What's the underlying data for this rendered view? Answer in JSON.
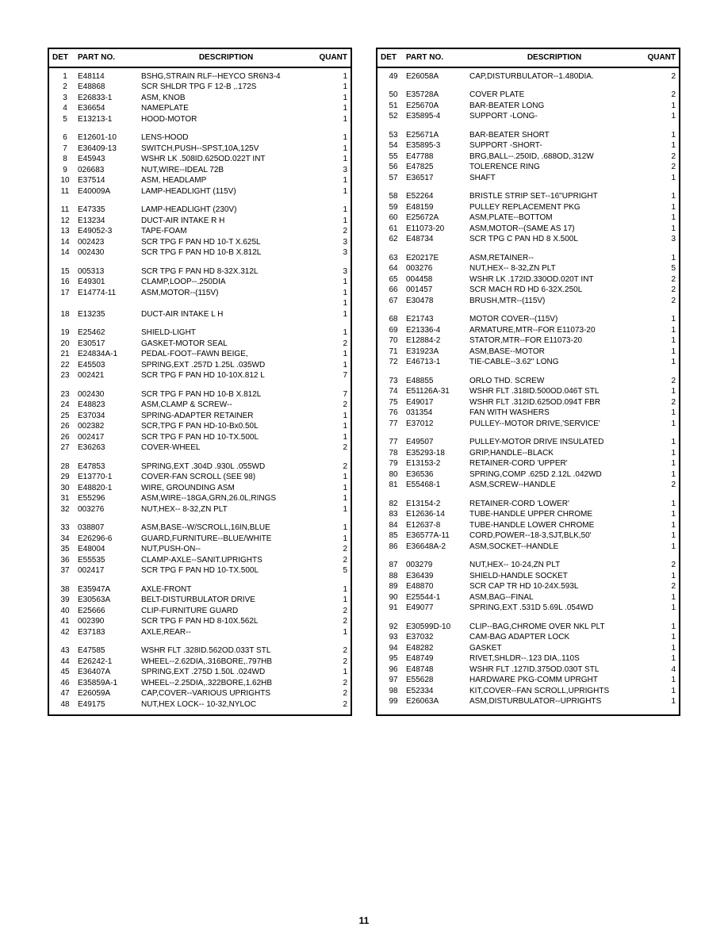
{
  "page_number": "11",
  "headers": {
    "det": "DET",
    "part": "PART NO.",
    "desc": "DESCRIPTION",
    "quant": "QUANT"
  },
  "left_rows": [
    {
      "det": "1",
      "part": "E48114",
      "desc": "BSHG,STRAIN RLF--HEYCO SR6N3-4",
      "quant": "1"
    },
    {
      "det": "2",
      "part": "E48868",
      "desc": "SCR SHLDR TPG  F   12-B ,.172S",
      "quant": "1"
    },
    {
      "det": "3",
      "part": "E26833-1",
      "desc": "ASM, KNOB",
      "quant": "1"
    },
    {
      "det": "4",
      "part": "E36654",
      "desc": "NAMEPLATE",
      "quant": "1"
    },
    {
      "det": "5",
      "part": "E13213-1",
      "desc": "HOOD-MOTOR",
      "quant": "1"
    },
    {
      "gap": true
    },
    {
      "det": "6",
      "part": "E12601-10",
      "desc": "LENS-HOOD",
      "quant": "1"
    },
    {
      "det": "7",
      "part": "E36409-13",
      "desc": "SWITCH,PUSH--SPST,10A,125V",
      "quant": "1"
    },
    {
      "det": "8",
      "part": "E45943",
      "desc": "WSHR LK  .508ID.625OD.022T INT",
      "quant": "1"
    },
    {
      "det": "9",
      "part": "026683",
      "desc": "NUT,WIRE--IDEAL 72B",
      "quant": "3"
    },
    {
      "det": "10",
      "part": "E37514",
      "desc": "ASM, HEADLAMP",
      "quant": "1"
    },
    {
      "det": "11",
      "part": "E40009A",
      "desc": "LAMP-HEADLIGHT (115V)",
      "quant": "1"
    },
    {
      "gap": true
    },
    {
      "det": "11",
      "part": "E47335",
      "desc": "LAMP-HEADLIGHT (230V)",
      "quant": "1"
    },
    {
      "det": "12",
      "part": "E13234",
      "desc": "DUCT-AIR INTAKE R H",
      "quant": "1"
    },
    {
      "det": "13",
      "part": "E49052-3",
      "desc": "TAPE-FOAM",
      "quant": "2"
    },
    {
      "det": "14",
      "part": "002423",
      "desc": "SCR TPG F PAN HD   10-T X.625L",
      "quant": "3"
    },
    {
      "det": "14",
      "part": "002430",
      "desc": "SCR TPG F PAN HD   10-B X.812L",
      "quant": "3"
    },
    {
      "gap": true
    },
    {
      "det": "15",
      "part": "005313",
      "desc": "SCR TPG F PAN HD    8-32X.312L",
      "quant": "3"
    },
    {
      "det": "16",
      "part": "E49301",
      "desc": "CLAMP,LOOP--.250DIA",
      "quant": "1"
    },
    {
      "det": "17",
      "part": "E14774-11",
      "desc": "ASM,MOTOR--(115V)",
      "quant": "1"
    },
    {
      "det": "",
      "part": "",
      "desc": "",
      "quant": "1"
    },
    {
      "det": "18",
      "part": "E13235",
      "desc": "DUCT-AIR INTAKE L H",
      "quant": "1"
    },
    {
      "gap": true
    },
    {
      "det": "19",
      "part": "E25462",
      "desc": "SHIELD-LIGHT",
      "quant": "1"
    },
    {
      "det": "20",
      "part": "E30517",
      "desc": "GASKET-MOTOR SEAL",
      "quant": "2"
    },
    {
      "det": "21",
      "part": "E24834A-1",
      "desc": "PEDAL-FOOT--FAWN BEIGE,",
      "quant": "1"
    },
    {
      "det": "22",
      "part": "E45503",
      "desc": "SPRING,EXT  .257D 1.25L .035WD",
      "quant": "1"
    },
    {
      "det": "23",
      "part": "002421",
      "desc": "SCR TPG F PAN HD 10-10X.812 L",
      "quant": "7"
    },
    {
      "gap": true
    },
    {
      "det": "23",
      "part": "002430",
      "desc": "SCR TPG F PAN HD   10-B X.812L",
      "quant": "7"
    },
    {
      "det": "24",
      "part": "E48823",
      "desc": "ASM,CLAMP & SCREW--",
      "quant": "2"
    },
    {
      "det": "25",
      "part": "E37034",
      "desc": "SPRING-ADAPTER RETAINER",
      "quant": "1"
    },
    {
      "det": "26",
      "part": "002382",
      "desc": "SCR,TPG F PAN HD-10-Bx0.50L",
      "quant": "1"
    },
    {
      "det": "26",
      "part": "002417",
      "desc": "SCR TPG F PAN HD  10-TX.500L",
      "quant": "1"
    },
    {
      "det": "27",
      "part": "E36263",
      "desc": "COVER-WHEEL",
      "quant": "2"
    },
    {
      "gap": true
    },
    {
      "det": "28",
      "part": "E47853",
      "desc": "SPRING,EXT  .304D .930L .055WD",
      "quant": "2"
    },
    {
      "det": "29",
      "part": "E13770-1",
      "desc": "COVER-FAN SCROLL (SEE 98)",
      "quant": "1"
    },
    {
      "det": "30",
      "part": "E48820-1",
      "desc": "WIRE, GROUNDING ASM",
      "quant": "1"
    },
    {
      "det": "31",
      "part": "E55296",
      "desc": "ASM,WIRE--18GA,GRN,26.0L,RINGS",
      "quant": "1"
    },
    {
      "det": "32",
      "part": "003276",
      "desc": "NUT,HEX--   8-32,ZN PLT",
      "quant": "1"
    },
    {
      "gap": true
    },
    {
      "det": "33",
      "part": "038807",
      "desc": "ASM,BASE--W/SCROLL,16IN,BLUE",
      "quant": "1"
    },
    {
      "det": "34",
      "part": "E26296-6",
      "desc": "GUARD,FURNITURE--BLUE/WHITE",
      "quant": "1"
    },
    {
      "det": "35",
      "part": "E48004",
      "desc": "NUT,PUSH-ON--",
      "quant": "2"
    },
    {
      "det": "36",
      "part": "E55535",
      "desc": "CLAMP-AXLE--SANIT.UPRIGHTS",
      "quant": "2"
    },
    {
      "det": "37",
      "part": "002417",
      "desc": "SCR TPG F PAN HD  10-TX.500L",
      "quant": "5"
    },
    {
      "gap": true
    },
    {
      "det": "38",
      "part": "E35947A",
      "desc": "AXLE-FRONT",
      "quant": "1"
    },
    {
      "det": "39",
      "part": "E30563A",
      "desc": "BELT-DISTURBULATOR DRIVE",
      "quant": "1"
    },
    {
      "det": "40",
      "part": "E25666",
      "desc": "CLIP-FURNITURE GUARD",
      "quant": "2"
    },
    {
      "det": "41",
      "part": "002390",
      "desc": "SCR TPG F PAN HD    8-10X.562L",
      "quant": "2"
    },
    {
      "det": "42",
      "part": "E37183",
      "desc": "AXLE,REAR--",
      "quant": "1"
    },
    {
      "gap": true
    },
    {
      "det": "43",
      "part": "E47585",
      "desc": "WSHR FLT .328ID.562OD.033T STL",
      "quant": "2"
    },
    {
      "det": "44",
      "part": "E26242-1",
      "desc": "WHEEL--2.62DIA,.316BORE,.797HB",
      "quant": "2"
    },
    {
      "det": "45",
      "part": "E36407A",
      "desc": "SPRING,EXT  .275D 1.50L .024WD",
      "quant": "1"
    },
    {
      "det": "46",
      "part": "E35859A-1",
      "desc": "WHEEL--2.25DIA,.322BORE,1.62HB",
      "quant": "2"
    },
    {
      "det": "47",
      "part": "E26059A",
      "desc": "CAP,COVER--VARIOUS UPRIGHTS",
      "quant": "2"
    },
    {
      "det": "48",
      "part": "E49175",
      "desc": "NUT,HEX LOCK--  10-32,NYLOC",
      "quant": "2"
    }
  ],
  "right_rows": [
    {
      "det": "49",
      "part": "E26058A",
      "desc": "CAP,DISTURBULATOR--1.480DIA.",
      "quant": "2"
    },
    {
      "gap": true
    },
    {
      "det": "50",
      "part": "E35728A",
      "desc": "COVER PLATE",
      "quant": "2"
    },
    {
      "det": "51",
      "part": "E25670A",
      "desc": "BAR-BEATER LONG",
      "quant": "1"
    },
    {
      "det": "52",
      "part": "E35895-4",
      "desc": "SUPPORT -LONG-",
      "quant": "1"
    },
    {
      "gap": true
    },
    {
      "det": "53",
      "part": "E25671A",
      "desc": "BAR-BEATER SHORT",
      "quant": "1"
    },
    {
      "det": "54",
      "part": "E35895-3",
      "desc": "SUPPORT -SHORT-",
      "quant": "1"
    },
    {
      "det": "55",
      "part": "E47788",
      "desc": "BRG,BALL--.250ID, .688OD,.312W",
      "quant": "2"
    },
    {
      "det": "56",
      "part": "E47825",
      "desc": "TOLERENCE RING",
      "quant": "2"
    },
    {
      "det": "57",
      "part": "E36517",
      "desc": "SHAFT",
      "quant": "1"
    },
    {
      "gap": true
    },
    {
      "det": "58",
      "part": "E52264",
      "desc": "BRISTLE STRIP SET--16\"UPRIGHT",
      "quant": "1"
    },
    {
      "det": "59",
      "part": "E48159",
      "desc": "PULLEY REPLACEMENT PKG",
      "quant": "1"
    },
    {
      "det": "60",
      "part": "E25672A",
      "desc": "ASM,PLATE--BOTTOM",
      "quant": "1"
    },
    {
      "det": "61",
      "part": "E11073-20",
      "desc": "ASM,MOTOR--(SAME AS 17)",
      "quant": "1"
    },
    {
      "det": "62",
      "part": "E48734",
      "desc": "SCR TPG C PAN HD    8  X.500L",
      "quant": "3"
    },
    {
      "gap": true
    },
    {
      "det": "63",
      "part": "E20217E",
      "desc": "ASM,RETAINER--",
      "quant": "1"
    },
    {
      "det": "64",
      "part": "003276",
      "desc": "NUT,HEX--   8-32,ZN PLT",
      "quant": "5"
    },
    {
      "det": "65",
      "part": "004458",
      "desc": "WSHR LK  .172ID.330OD.020T INT",
      "quant": "2"
    },
    {
      "det": "66",
      "part": "001457",
      "desc": "SCR MACH RD  HD    6-32X.250L",
      "quant": "2"
    },
    {
      "det": "67",
      "part": "E30478",
      "desc": "BRUSH,MTR--(115V)",
      "quant": "2"
    },
    {
      "gap": true
    },
    {
      "det": "68",
      "part": "E21743",
      "desc": "MOTOR COVER--(115V)",
      "quant": "1"
    },
    {
      "det": "69",
      "part": "E21336-4",
      "desc": "ARMATURE,MTR--FOR E11073-20",
      "quant": "1"
    },
    {
      "det": "70",
      "part": "E12884-2",
      "desc": "STATOR,MTR--FOR E11073-20",
      "quant": "1"
    },
    {
      "det": "71",
      "part": "E31923A",
      "desc": "ASM,BASE--MOTOR",
      "quant": "1"
    },
    {
      "det": "72",
      "part": "E46713-1",
      "desc": "TIE-CABLE--3.62\" LONG",
      "quant": "1"
    },
    {
      "gap": true
    },
    {
      "det": "73",
      "part": "E48855",
      "desc": "ORLO THD. SCREW",
      "quant": "2"
    },
    {
      "det": "74",
      "part": "E51126A-31",
      "desc": "WSHR FLT .318ID.500OD.046T STL",
      "quant": "1"
    },
    {
      "det": "75",
      "part": "E49017",
      "desc": "WSHR FLT .312ID.625OD.094T FBR",
      "quant": "2"
    },
    {
      "det": "76",
      "part": "031354",
      "desc": "FAN WITH WASHERS",
      "quant": "1"
    },
    {
      "det": "77",
      "part": "E37012",
      "desc": "PULLEY--MOTOR DRIVE,'SERVICE'",
      "quant": "1"
    },
    {
      "gap": true
    },
    {
      "det": "77",
      "part": "E49507",
      "desc": "PULLEY-MOTOR DRIVE INSULATED",
      "quant": "1"
    },
    {
      "det": "78",
      "part": "E35293-18",
      "desc": "GRIP,HANDLE--BLACK",
      "quant": "1"
    },
    {
      "det": "79",
      "part": "E13153-2",
      "desc": "RETAINER-CORD 'UPPER'",
      "quant": "1"
    },
    {
      "det": "80",
      "part": "E36536",
      "desc": "SPRING,COMP .625D 2.12L .042WD",
      "quant": "1"
    },
    {
      "det": "81",
      "part": "E55468-1",
      "desc": "ASM,SCREW--HANDLE",
      "quant": "2"
    },
    {
      "gap": true
    },
    {
      "det": "82",
      "part": "E13154-2",
      "desc": "RETAINER-CORD 'LOWER'",
      "quant": "1"
    },
    {
      "det": "83",
      "part": "E12636-14",
      "desc": "TUBE-HANDLE UPPER CHROME",
      "quant": "1"
    },
    {
      "det": "84",
      "part": "E12637-8",
      "desc": "TUBE-HANDLE LOWER CHROME",
      "quant": "1"
    },
    {
      "det": "85",
      "part": "E36577A-11",
      "desc": "CORD,POWER--18-3,SJT,BLK,50'",
      "quant": "1"
    },
    {
      "det": "86",
      "part": "E36648A-2",
      "desc": "ASM,SOCKET--HANDLE",
      "quant": "1"
    },
    {
      "gap": true
    },
    {
      "det": "87",
      "part": "003279",
      "desc": "NUT,HEX--  10-24,ZN PLT",
      "quant": "2"
    },
    {
      "det": "88",
      "part": "E36439",
      "desc": "SHIELD-HANDLE SOCKET",
      "quant": "1"
    },
    {
      "det": "89",
      "part": "E48870",
      "desc": "SCR CAP TR  HD   10-24X.593L",
      "quant": "2"
    },
    {
      "det": "90",
      "part": "E25544-1",
      "desc": "ASM,BAG--FINAL",
      "quant": "1"
    },
    {
      "det": "91",
      "part": "E49077",
      "desc": "SPRING,EXT  .531D 5.69L .054WD",
      "quant": "1"
    },
    {
      "gap": true
    },
    {
      "det": "92",
      "part": "E30599D-10",
      "desc": "CLIP--BAG,CHROME OVER NKL PLT",
      "quant": "1"
    },
    {
      "det": "93",
      "part": "E37032",
      "desc": "CAM-BAG ADAPTER LOCK",
      "quant": "1"
    },
    {
      "det": "94",
      "part": "E48282",
      "desc": "GASKET",
      "quant": "1"
    },
    {
      "det": "95",
      "part": "E48749",
      "desc": "RIVET,SHLDR--.123 DIA,.110S",
      "quant": "1"
    },
    {
      "det": "96",
      "part": "E48748",
      "desc": "WSHR FLT .127ID.375OD.030T STL",
      "quant": "4"
    },
    {
      "det": "97",
      "part": "E55628",
      "desc": "HARDWARE PKG-COMM UPRGHT",
      "quant": "1"
    },
    {
      "det": "98",
      "part": "E52334",
      "desc": "KIT,COVER--FAN SCROLL,UPRIGHTS",
      "quant": "1"
    },
    {
      "det": "99",
      "part": "E26063A",
      "desc": "ASM,DISTURBULATOR--UPRIGHTS",
      "quant": "1"
    }
  ]
}
